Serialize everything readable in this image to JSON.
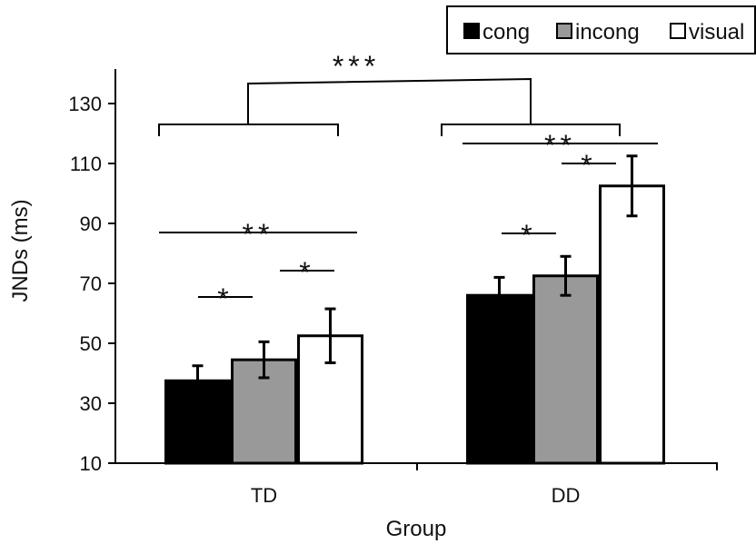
{
  "chart_data": {
    "type": "bar",
    "xlabel": "Group",
    "ylabel": "JNDs (ms)",
    "ylim": [
      10,
      140
    ],
    "yticks": [
      10,
      30,
      50,
      70,
      90,
      110,
      130
    ],
    "categories": [
      "TD",
      "DD"
    ],
    "series": [
      {
        "name": "cong",
        "color": "#000000",
        "values": [
          37.5,
          66
        ],
        "errors": [
          5,
          6
        ]
      },
      {
        "name": "incong",
        "color": "#999999",
        "values": [
          44.5,
          72.5
        ],
        "errors": [
          6,
          6.5
        ]
      },
      {
        "name": "visual",
        "color": "#ffffff",
        "values": [
          52.5,
          102.5
        ],
        "errors": [
          9,
          10
        ]
      }
    ],
    "legend": {
      "position": "top-right"
    },
    "grid": false,
    "significance": [
      {
        "group": "TD",
        "pair": [
          "cong",
          "incong"
        ],
        "label": "*"
      },
      {
        "group": "TD",
        "pair": [
          "incong",
          "visual"
        ],
        "label": "*"
      },
      {
        "group": "TD",
        "pair": [
          "cong",
          "visual"
        ],
        "label": "**"
      },
      {
        "group": "DD",
        "pair": [
          "cong",
          "incong"
        ],
        "label": "*"
      },
      {
        "group": "DD",
        "pair": [
          "incong",
          "visual"
        ],
        "label": "*"
      },
      {
        "group": "DD",
        "pair": [
          "cong",
          "visual"
        ],
        "label": "**"
      },
      {
        "groups": [
          "TD",
          "DD"
        ],
        "label": "***"
      }
    ]
  }
}
